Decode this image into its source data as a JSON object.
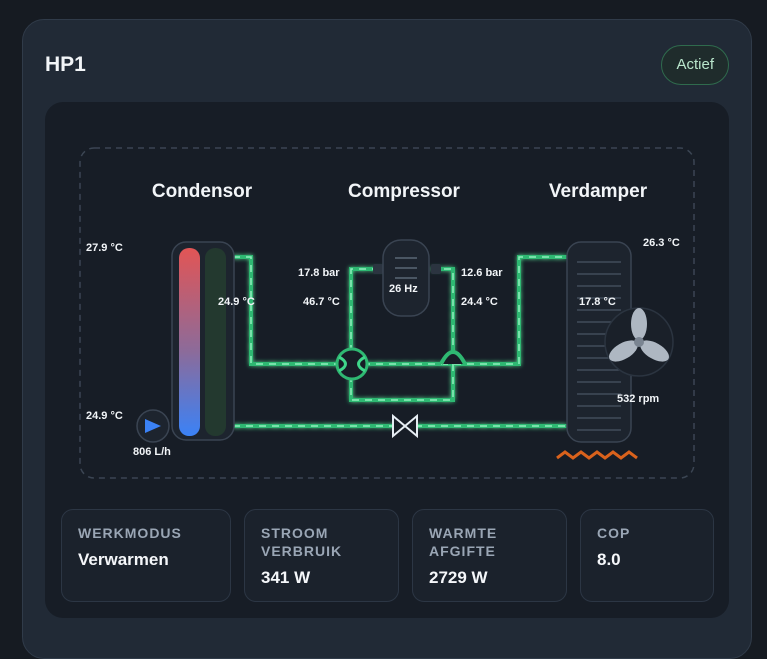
{
  "card": {
    "title": "HP1",
    "status": "Actief"
  },
  "diagram": {
    "titles": {
      "condensor": "Condensor",
      "compressor": "Compressor",
      "verdamper": "Verdamper"
    },
    "readings": {
      "condensor_supply_temp": "27.9 °C",
      "condensor_return_temp": "24.9 °C",
      "condensor_internal_temp": "24.9 °C",
      "flow_rate": "806 L/h",
      "discharge_pressure": "17.8 bar",
      "discharge_temp": "46.7 °C",
      "compressor_frequency": "26 Hz",
      "suction_pressure": "12.6 bar",
      "suction_temp": "24.4 °C",
      "ambient_temp": "26.3 °C",
      "evaporator_temp": "17.8 °C",
      "fan_speed": "532 rpm"
    },
    "colors": {
      "hot": "#e25555",
      "cold": "#3b82f6",
      "refrigerant": "#3fd68a",
      "heater": "#d9621c"
    }
  },
  "stats": [
    {
      "label": "WERKMODUS",
      "value": "Verwarmen"
    },
    {
      "label": "STROOM VERBRUIK",
      "value": "341 W"
    },
    {
      "label": "WARMTE AFGIFTE",
      "value": "2729 W"
    },
    {
      "label": "COP",
      "value": "8.0"
    }
  ]
}
